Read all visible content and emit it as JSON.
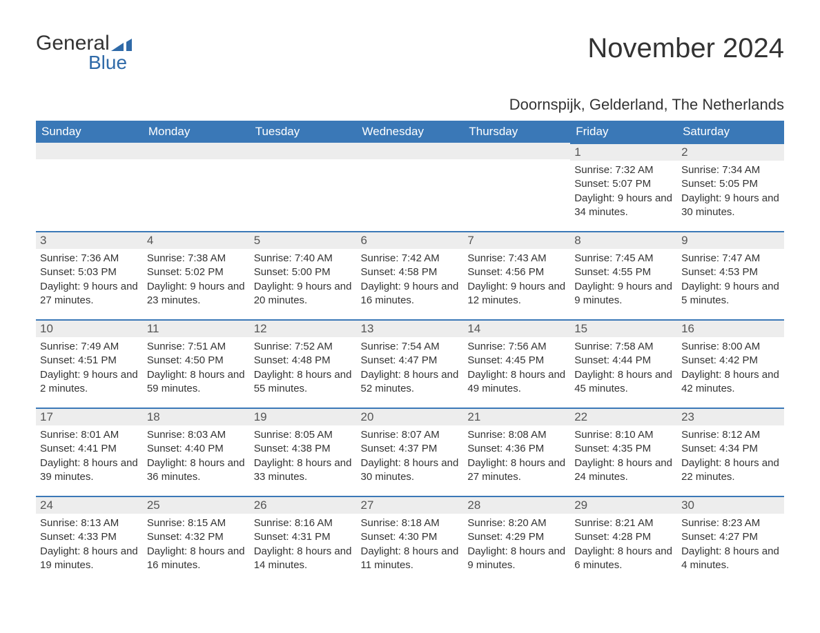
{
  "logo": {
    "text1": "General",
    "text2": "Blue"
  },
  "title": "November 2024",
  "location": "Doornspijk, Gelderland, The Netherlands",
  "colors": {
    "header_bg": "#3a78b7",
    "header_fg": "#ffffff",
    "daynum_bg": "#ededed",
    "rule": "#3a78b7",
    "text": "#333333",
    "logo_accent": "#2f6aa8"
  },
  "day_headers": [
    "Sunday",
    "Monday",
    "Tuesday",
    "Wednesday",
    "Thursday",
    "Friday",
    "Saturday"
  ],
  "weeks": [
    [
      null,
      null,
      null,
      null,
      null,
      {
        "n": "1",
        "sunrise": "7:32 AM",
        "sunset": "5:07 PM",
        "daylight": "9 hours and 34 minutes."
      },
      {
        "n": "2",
        "sunrise": "7:34 AM",
        "sunset": "5:05 PM",
        "daylight": "9 hours and 30 minutes."
      }
    ],
    [
      {
        "n": "3",
        "sunrise": "7:36 AM",
        "sunset": "5:03 PM",
        "daylight": "9 hours and 27 minutes."
      },
      {
        "n": "4",
        "sunrise": "7:38 AM",
        "sunset": "5:02 PM",
        "daylight": "9 hours and 23 minutes."
      },
      {
        "n": "5",
        "sunrise": "7:40 AM",
        "sunset": "5:00 PM",
        "daylight": "9 hours and 20 minutes."
      },
      {
        "n": "6",
        "sunrise": "7:42 AM",
        "sunset": "4:58 PM",
        "daylight": "9 hours and 16 minutes."
      },
      {
        "n": "7",
        "sunrise": "7:43 AM",
        "sunset": "4:56 PM",
        "daylight": "9 hours and 12 minutes."
      },
      {
        "n": "8",
        "sunrise": "7:45 AM",
        "sunset": "4:55 PM",
        "daylight": "9 hours and 9 minutes."
      },
      {
        "n": "9",
        "sunrise": "7:47 AM",
        "sunset": "4:53 PM",
        "daylight": "9 hours and 5 minutes."
      }
    ],
    [
      {
        "n": "10",
        "sunrise": "7:49 AM",
        "sunset": "4:51 PM",
        "daylight": "9 hours and 2 minutes."
      },
      {
        "n": "11",
        "sunrise": "7:51 AM",
        "sunset": "4:50 PM",
        "daylight": "8 hours and 59 minutes."
      },
      {
        "n": "12",
        "sunrise": "7:52 AM",
        "sunset": "4:48 PM",
        "daylight": "8 hours and 55 minutes."
      },
      {
        "n": "13",
        "sunrise": "7:54 AM",
        "sunset": "4:47 PM",
        "daylight": "8 hours and 52 minutes."
      },
      {
        "n": "14",
        "sunrise": "7:56 AM",
        "sunset": "4:45 PM",
        "daylight": "8 hours and 49 minutes."
      },
      {
        "n": "15",
        "sunrise": "7:58 AM",
        "sunset": "4:44 PM",
        "daylight": "8 hours and 45 minutes."
      },
      {
        "n": "16",
        "sunrise": "8:00 AM",
        "sunset": "4:42 PM",
        "daylight": "8 hours and 42 minutes."
      }
    ],
    [
      {
        "n": "17",
        "sunrise": "8:01 AM",
        "sunset": "4:41 PM",
        "daylight": "8 hours and 39 minutes."
      },
      {
        "n": "18",
        "sunrise": "8:03 AM",
        "sunset": "4:40 PM",
        "daylight": "8 hours and 36 minutes."
      },
      {
        "n": "19",
        "sunrise": "8:05 AM",
        "sunset": "4:38 PM",
        "daylight": "8 hours and 33 minutes."
      },
      {
        "n": "20",
        "sunrise": "8:07 AM",
        "sunset": "4:37 PM",
        "daylight": "8 hours and 30 minutes."
      },
      {
        "n": "21",
        "sunrise": "8:08 AM",
        "sunset": "4:36 PM",
        "daylight": "8 hours and 27 minutes."
      },
      {
        "n": "22",
        "sunrise": "8:10 AM",
        "sunset": "4:35 PM",
        "daylight": "8 hours and 24 minutes."
      },
      {
        "n": "23",
        "sunrise": "8:12 AM",
        "sunset": "4:34 PM",
        "daylight": "8 hours and 22 minutes."
      }
    ],
    [
      {
        "n": "24",
        "sunrise": "8:13 AM",
        "sunset": "4:33 PM",
        "daylight": "8 hours and 19 minutes."
      },
      {
        "n": "25",
        "sunrise": "8:15 AM",
        "sunset": "4:32 PM",
        "daylight": "8 hours and 16 minutes."
      },
      {
        "n": "26",
        "sunrise": "8:16 AM",
        "sunset": "4:31 PM",
        "daylight": "8 hours and 14 minutes."
      },
      {
        "n": "27",
        "sunrise": "8:18 AM",
        "sunset": "4:30 PM",
        "daylight": "8 hours and 11 minutes."
      },
      {
        "n": "28",
        "sunrise": "8:20 AM",
        "sunset": "4:29 PM",
        "daylight": "8 hours and 9 minutes."
      },
      {
        "n": "29",
        "sunrise": "8:21 AM",
        "sunset": "4:28 PM",
        "daylight": "8 hours and 6 minutes."
      },
      {
        "n": "30",
        "sunrise": "8:23 AM",
        "sunset": "4:27 PM",
        "daylight": "8 hours and 4 minutes."
      }
    ]
  ],
  "labels": {
    "sunrise": "Sunrise:",
    "sunset": "Sunset:",
    "daylight": "Daylight:"
  }
}
